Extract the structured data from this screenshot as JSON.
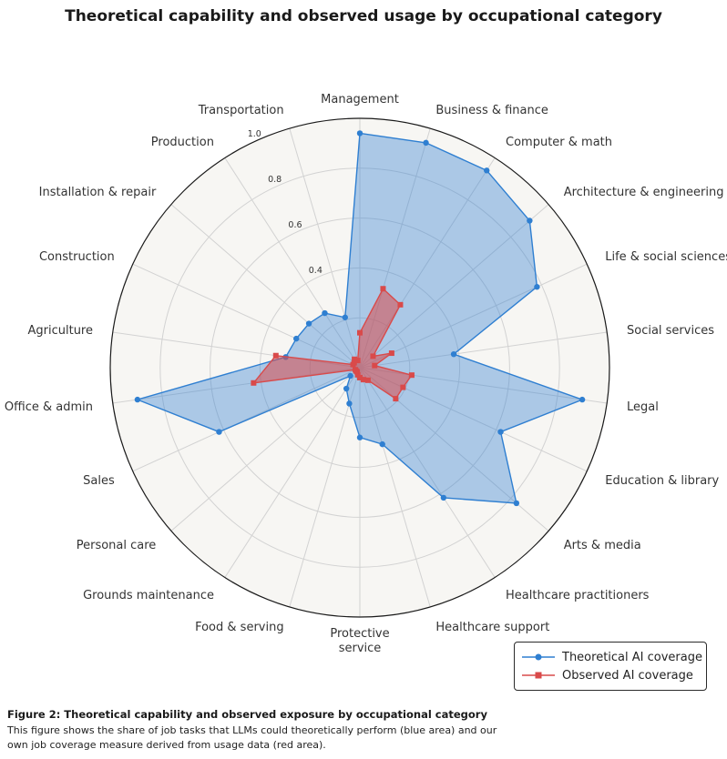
{
  "chart_data": {
    "type": "radar",
    "title": "Theoretical capability and observed usage by occupational category",
    "categories": [
      "Management",
      "Business & finance",
      "Computer & math",
      "Architecture & engineering",
      "Life & social sciences",
      "Social services",
      "Legal",
      "Education & library",
      "Arts & media",
      "Healthcare practitioners",
      "Healthcare support",
      "Protective service",
      "Food & serving",
      "Grounds maintenance",
      "Personal care",
      "Sales",
      "Office & admin",
      "Agriculture",
      "Construction",
      "Installation & repair",
      "Production",
      "Transportation"
    ],
    "radial_ticks": [
      {
        "value": 0.4,
        "label": "0.4"
      },
      {
        "value": 0.6,
        "label": "0.6"
      },
      {
        "value": 0.8,
        "label": "0.8"
      },
      {
        "value": 1.0,
        "label": "1.0"
      }
    ],
    "rlim": [
      0,
      1.0
    ],
    "grid": true,
    "legend_position": "bottom-right",
    "series": [
      {
        "name": "Theoretical AI coverage",
        "color": "#2f7fd1",
        "values": [
          0.94,
          0.94,
          0.94,
          0.9,
          0.78,
          0.38,
          0.9,
          0.62,
          0.83,
          0.62,
          0.32,
          0.28,
          0.15,
          0.1,
          0.05,
          0.62,
          0.9,
          0.3,
          0.28,
          0.27,
          0.26,
          0.21
        ]
      },
      {
        "name": "Observed AI coverage",
        "color": "#d94a4a",
        "values": [
          0.14,
          0.33,
          0.3,
          0.07,
          0.14,
          0.06,
          0.21,
          0.19,
          0.19,
          0.06,
          0.05,
          0.04,
          0.03,
          0.02,
          0.02,
          0.02,
          0.43,
          0.34,
          0.03,
          0.03,
          0.04,
          0.03
        ]
      }
    ]
  },
  "legend": {
    "items": [
      {
        "label": "Theoretical AI coverage"
      },
      {
        "label": "Observed AI coverage"
      }
    ]
  },
  "caption": {
    "title": "Figure 2: Theoretical capability and observed exposure by occupational category",
    "text": "This figure shows the share of job tasks that LLMs could theoretically perform (blue area) and our own job coverage measure derived from usage data (red area)."
  }
}
